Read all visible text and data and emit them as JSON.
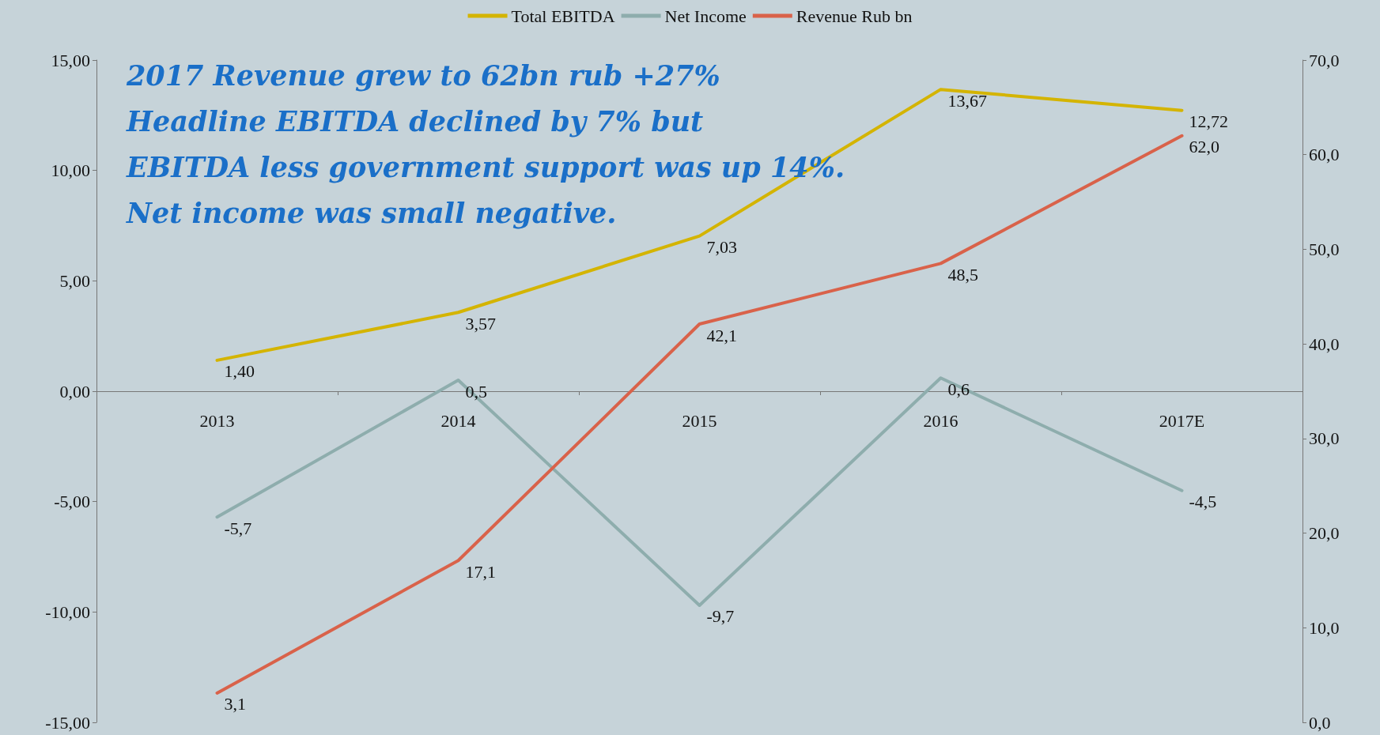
{
  "chart_data": {
    "type": "line",
    "categories": [
      "2013",
      "2014",
      "2015",
      "2016",
      "2017E"
    ],
    "series": [
      {
        "name": "Total EBITDA",
        "color": "#d4b400",
        "values": [
          1.4,
          3.57,
          7.03,
          13.67,
          12.72
        ],
        "value_labels": [
          "1,40",
          "3,57",
          "7,03",
          "13,67",
          "12,72"
        ]
      },
      {
        "name": "Net Income",
        "color": "#8eadad",
        "values": [
          -5.7,
          0.5,
          -9.7,
          0.6,
          -4.5
        ],
        "value_labels": [
          "-5,7",
          "0,5",
          "-9,7",
          "0,6",
          "-4,5"
        ]
      },
      {
        "name": "Revenue Rub bn",
        "color": "#d9624a",
        "axis": "y2",
        "values": [
          3.1,
          17.1,
          42.1,
          48.5,
          62.0
        ],
        "value_labels": [
          "3,1",
          "17,1",
          "42,1",
          "48,5",
          "62,0"
        ]
      }
    ],
    "ylim": [
      -15,
      15
    ],
    "yticks": [
      {
        "value": -15,
        "label": "-15,00"
      },
      {
        "value": -10,
        "label": "-10,00"
      },
      {
        "value": -5,
        "label": "-5,00"
      },
      {
        "value": 0,
        "label": "0,00"
      },
      {
        "value": 5,
        "label": "5,00"
      },
      {
        "value": 10,
        "label": "10,00"
      },
      {
        "value": 15,
        "label": "15,00"
      }
    ],
    "y2lim": [
      0,
      70
    ],
    "y2ticks": [
      {
        "value": 0,
        "label": "0,0"
      },
      {
        "value": 10,
        "label": "10,0"
      },
      {
        "value": 20,
        "label": "20,0"
      },
      {
        "value": 30,
        "label": "30,0"
      },
      {
        "value": 40,
        "label": "40,0"
      },
      {
        "value": 50,
        "label": "50,0"
      },
      {
        "value": 60,
        "label": "60,0"
      },
      {
        "value": 70,
        "label": "70,0"
      }
    ],
    "annotations": [
      "2017 Revenue grew to 62bn rub +27%\nHeadline EBITDA declined by 7% but\nEBITDA less government support was up 14%.\nNet income was small negative."
    ],
    "legend": "top",
    "grid": false,
    "marker": "none",
    "line_style": "solid"
  }
}
